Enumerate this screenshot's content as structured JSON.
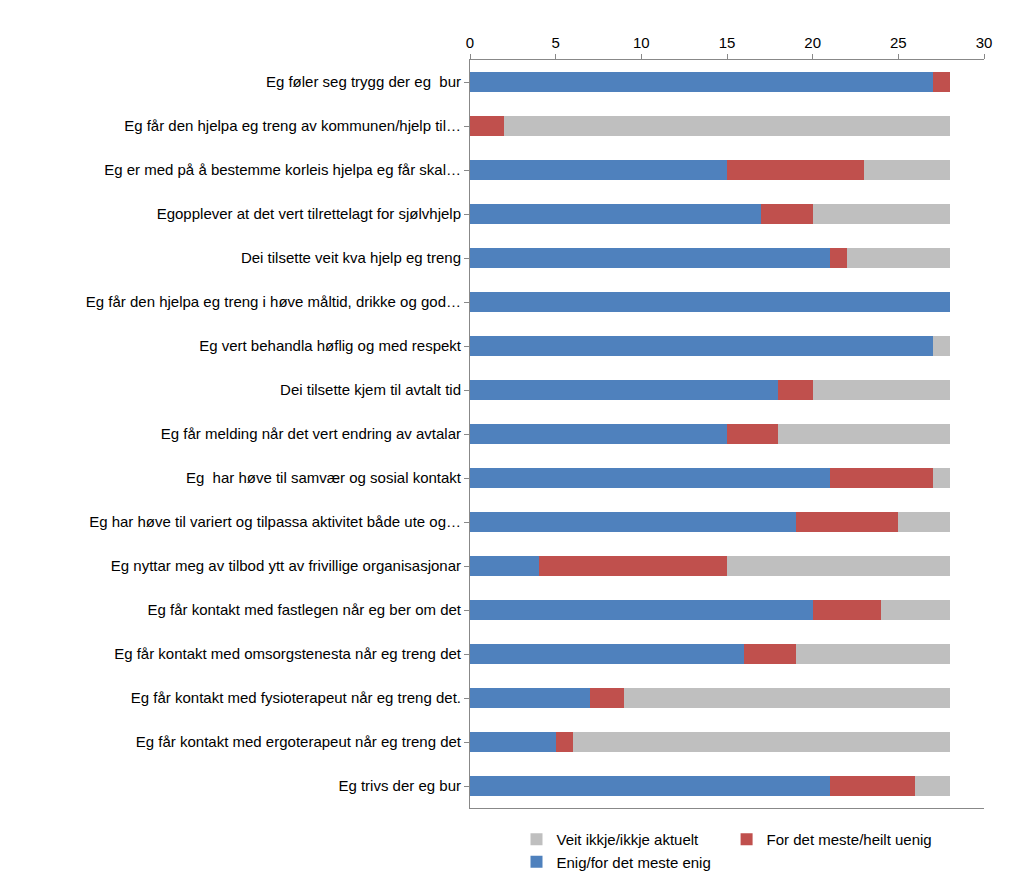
{
  "chart_data": {
    "type": "bar",
    "orientation": "horizontal",
    "stacked": true,
    "categories": [
      "Eg føler seg trygg der eg  bur",
      "Eg får den hjelpa eg treng av kommunen/hjelp til…",
      "Eg er med på å bestemme korleis hjelpa eg får skal…",
      "Egopplever at det vert tilrettelagt for sjølvhjelp",
      "Dei tilsette veit kva hjelp eg treng",
      "Eg får den hjelpa eg treng i høve måltid, drikke og god…",
      "Eg vert behandla høflig og med respekt",
      "Dei tilsette kjem til avtalt tid",
      "Eg får melding når det vert endring av avtalar",
      "Eg  har høve til samvær og sosial kontakt",
      "Eg har høve til variert og tilpassa aktivitet både ute og…",
      "Eg nyttar meg av tilbod ytt av frivillige organisasjonar",
      "Eg får kontakt med fastlegen når eg ber om det",
      "Eg får kontakt med omsorgstenesta når eg treng det",
      "Eg får kontakt med fysioterapeut når eg treng det.",
      "Eg får kontakt med ergoterapeut når eg treng det",
      "Eg trivs der eg bur"
    ],
    "series": [
      {
        "name": "Enig/for det meste enig",
        "color": "#4f81bd",
        "values": [
          27,
          0,
          15,
          17,
          21,
          28,
          27,
          18,
          15,
          21,
          19,
          4,
          20,
          16,
          7,
          5,
          21
        ]
      },
      {
        "name": "For det meste/heilt uenig",
        "color": "#c0504d",
        "values": [
          1,
          2,
          8,
          3,
          1,
          0,
          0,
          2,
          3,
          6,
          6,
          11,
          4,
          3,
          2,
          1,
          5
        ]
      },
      {
        "name": "Veit ikkje/ikkje aktuelt",
        "color": "#bfbfbf",
        "values": [
          0,
          26,
          5,
          8,
          6,
          0,
          1,
          8,
          10,
          1,
          3,
          13,
          4,
          9,
          19,
          22,
          2
        ]
      }
    ],
    "xlim": [
      0,
      30
    ],
    "xticks": [
      0,
      5,
      10,
      15,
      20,
      25,
      30
    ],
    "grid": false,
    "legend": "bottom"
  }
}
